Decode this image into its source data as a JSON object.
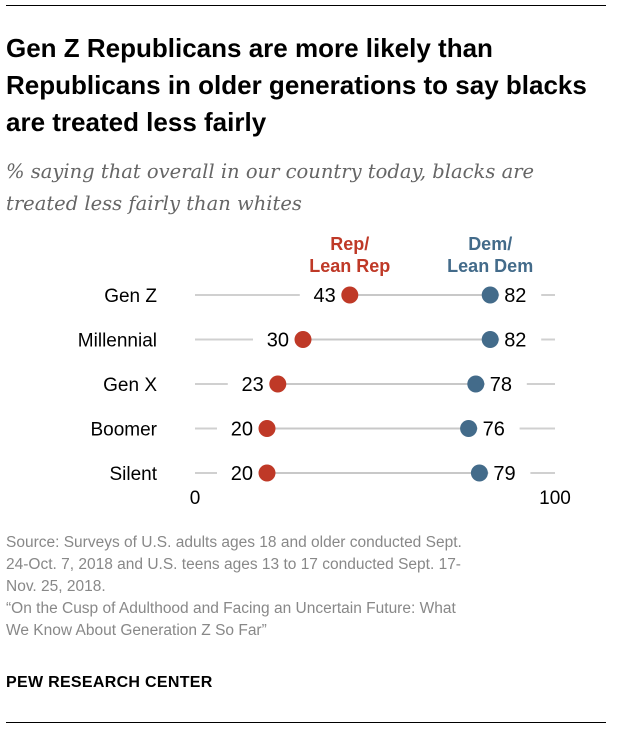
{
  "title": "Gen Z Republicans are more likely than Republicans in older generations to say blacks are treated less fairly",
  "subtitle": "% saying that overall in our country today, blacks are treated less fairly than whites",
  "chart_data": {
    "type": "dot",
    "categories": [
      "Gen Z",
      "Millennial",
      "Gen X",
      "Boomer",
      "Silent"
    ],
    "series": [
      {
        "name": "Rep/ Lean Rep",
        "label_lines": [
          "Rep/",
          "Lean Rep"
        ],
        "color": "#bf3927",
        "values": [
          43,
          30,
          23,
          20,
          20
        ]
      },
      {
        "name": "Dem/ Lean Dem",
        "label_lines": [
          "Dem/",
          "Lean Dem"
        ],
        "color": "#436b8a",
        "values": [
          82,
          82,
          78,
          76,
          79
        ]
      }
    ],
    "xlim": [
      0,
      100
    ],
    "xticks": [
      "0",
      "100"
    ]
  },
  "source": [
    "Source: Surveys of U.S. adults ages 18 and older conducted Sept.",
    "24-Oct. 7, 2018 and U.S. teens ages 13 to 17 conducted Sept. 17-",
    "Nov. 25, 2018.",
    "“On the Cusp of Adulthood and Facing an Uncertain Future: What",
    "We Know About Generation Z So Far”"
  ],
  "logo": "PEW RESEARCH CENTER"
}
